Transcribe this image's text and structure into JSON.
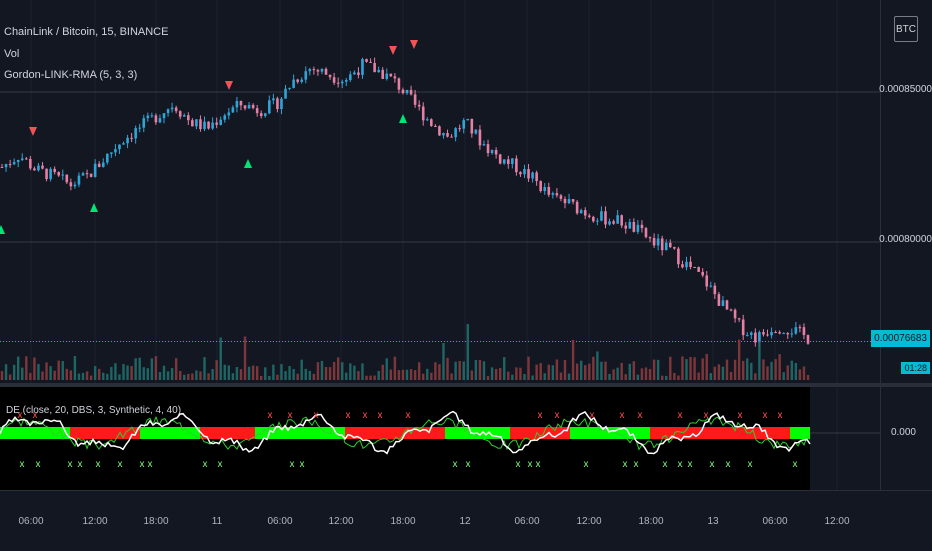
{
  "chart": {
    "symbol_title": "ChainLink / Bitcoin, 15, BINANCE",
    "volume_label": "Vol",
    "study_label": "Gordon-LINK-RMA (5, 3, 3)",
    "currency_button": "BTC"
  },
  "price_axis": {
    "labels": [
      "0.00085000",
      "0.00080000"
    ],
    "current_price": "0.00076683",
    "countdown": "01:28"
  },
  "indicator": {
    "legend": "DE (close, 20, DBS, 3, Synthetic, 4, 40)",
    "axis_label": "0.000"
  },
  "time_axis": {
    "labels": [
      "06:00",
      "12:00",
      "18:00",
      "11",
      "06:00",
      "12:00",
      "18:00",
      "12",
      "06:00",
      "12:00",
      "18:00",
      "13",
      "06:00",
      "12:00"
    ]
  },
  "colors": {
    "background": "#131722",
    "up_candle": "#26a69a",
    "down_candle": "#ef5350",
    "candle_up_blue": "#2fa4d6",
    "candle_down_pink": "#e57fa3",
    "buy_arrow": "#00e676",
    "sell_arrow": "#f05454",
    "price_tag": "#00bcd4",
    "indicator_green": "#00ff00",
    "indicator_red": "#ff1a1a"
  },
  "chart_data": {
    "type": "candlestick",
    "symbol": "ChainLink / Bitcoin",
    "interval": "15",
    "exchange": "BINANCE",
    "y_ticks": [
      0.00085,
      0.0008
    ],
    "last_price": 0.00076683,
    "close_path": [
      0.000825,
      0.000829,
      0.000824,
      0.000822,
      0.000819,
      0.000822,
      0.000828,
      0.000834,
      0.000838,
      0.000842,
      0.000846,
      0.00084,
      0.000838,
      0.000843,
      0.000846,
      0.000844,
      0.000846,
      0.000854,
      0.000858,
      0.000856,
      0.000854,
      0.000859,
      0.000857,
      0.000853,
      0.000846,
      0.00084,
      0.000835,
      0.00084,
      0.000833,
      0.000828,
      0.000825,
      0.000821,
      0.000815,
      0.000813,
      0.00081,
      0.000808,
      0.000807,
      0.000804,
      0.0008,
      0.000797,
      0.000792,
      0.000787,
      0.000779,
      0.000772,
      0.000768,
      0.000772,
      0.000771,
      0.000768
    ]
  }
}
